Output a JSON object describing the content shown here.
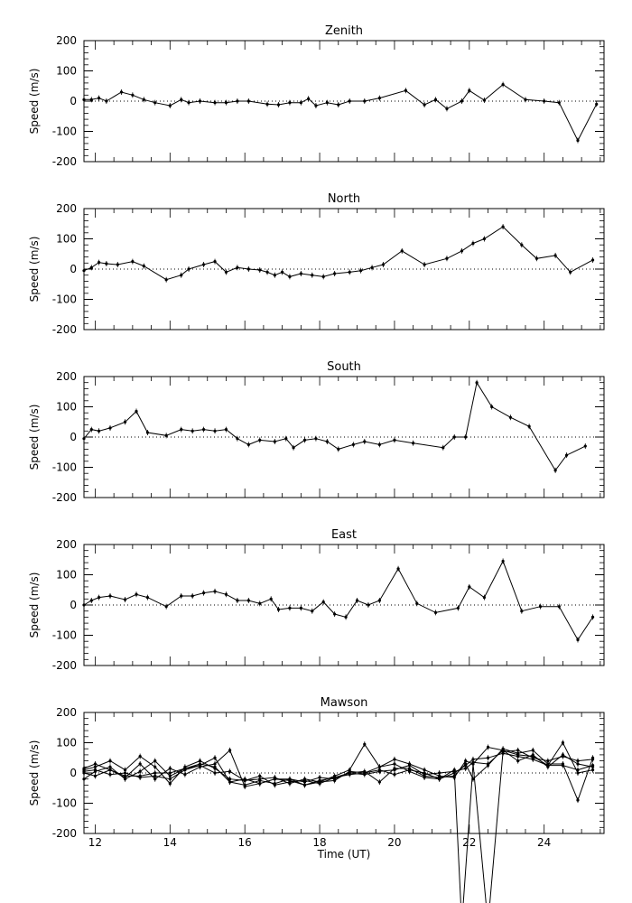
{
  "chart_data": [
    {
      "type": "line",
      "title": "Zenith",
      "ylabel": "Speed (m/s)",
      "xlabel": "",
      "xlim": [
        11.7,
        25.6
      ],
      "ylim": [
        -200,
        200
      ],
      "yticks": [
        -200,
        -100,
        0,
        100,
        200
      ],
      "xticks": [
        12,
        14,
        16,
        18,
        20,
        22,
        24
      ],
      "zero_line": "dotted",
      "series": [
        {
          "x": [
            11.7,
            11.9,
            12.1,
            12.3,
            12.7,
            13.0,
            13.3,
            13.6,
            14.0,
            14.3,
            14.5,
            14.8,
            15.2,
            15.5,
            15.8,
            16.1,
            16.6,
            16.9,
            17.2,
            17.5,
            17.7,
            17.9,
            18.2,
            18.5,
            18.8,
            19.2,
            19.6,
            20.3,
            20.8,
            21.1,
            21.4,
            21.8,
            22.0,
            22.4,
            22.9,
            23.5,
            24.0,
            24.4,
            24.9,
            25.4
          ],
          "y": [
            5,
            5,
            10,
            0,
            30,
            20,
            5,
            -5,
            -15,
            5,
            -5,
            0,
            -5,
            -5,
            0,
            0,
            -10,
            -12,
            -5,
            -5,
            8,
            -15,
            -5,
            -12,
            0,
            0,
            10,
            35,
            -12,
            5,
            -25,
            0,
            35,
            3,
            55,
            5,
            0,
            -5,
            -130,
            -10
          ]
        }
      ]
    },
    {
      "type": "line",
      "title": "North",
      "ylabel": "Speed (m/s)",
      "xlabel": "",
      "xlim": [
        11.7,
        25.6
      ],
      "ylim": [
        -200,
        200
      ],
      "yticks": [
        -200,
        -100,
        0,
        100,
        200
      ],
      "xticks": [
        12,
        14,
        16,
        18,
        20,
        22,
        24
      ],
      "zero_line": "dotted",
      "series": [
        {
          "x": [
            11.7,
            11.9,
            12.1,
            12.3,
            12.6,
            13.0,
            13.3,
            13.9,
            14.3,
            14.5,
            14.9,
            15.2,
            15.5,
            15.8,
            16.1,
            16.4,
            16.6,
            16.8,
            17.0,
            17.2,
            17.5,
            17.8,
            18.1,
            18.4,
            18.8,
            19.1,
            19.4,
            19.7,
            20.2,
            20.8,
            21.4,
            21.8,
            22.1,
            22.4,
            22.9,
            23.4,
            23.8,
            24.3,
            24.7,
            25.3
          ],
          "y": [
            -5,
            5,
            22,
            18,
            15,
            25,
            10,
            -35,
            -20,
            0,
            15,
            25,
            -10,
            5,
            0,
            -3,
            -10,
            -20,
            -10,
            -25,
            -15,
            -20,
            -25,
            -15,
            -10,
            -5,
            5,
            15,
            60,
            15,
            35,
            60,
            85,
            100,
            140,
            80,
            35,
            45,
            -10,
            30
          ]
        }
      ]
    },
    {
      "type": "line",
      "title": "South",
      "ylabel": "Speed (m/s)",
      "xlabel": "",
      "xlim": [
        11.7,
        25.6
      ],
      "ylim": [
        -200,
        200
      ],
      "yticks": [
        -200,
        -100,
        0,
        100,
        200
      ],
      "xticks": [
        12,
        14,
        16,
        18,
        20,
        22,
        24
      ],
      "zero_line": "dotted",
      "series": [
        {
          "x": [
            11.7,
            11.9,
            12.1,
            12.4,
            12.8,
            13.1,
            13.4,
            13.9,
            14.3,
            14.6,
            14.9,
            15.2,
            15.5,
            15.8,
            16.1,
            16.4,
            16.8,
            17.1,
            17.3,
            17.6,
            17.9,
            18.2,
            18.5,
            18.9,
            19.2,
            19.6,
            20.0,
            20.5,
            21.3,
            21.6,
            21.9,
            22.2,
            22.6,
            23.1,
            23.6,
            24.3,
            24.6,
            25.1
          ],
          "y": [
            -5,
            25,
            20,
            30,
            50,
            85,
            15,
            5,
            25,
            20,
            25,
            20,
            25,
            -5,
            -25,
            -10,
            -15,
            -5,
            -35,
            -10,
            -5,
            -15,
            -40,
            -25,
            -15,
            -25,
            -10,
            -20,
            -35,
            0,
            0,
            180,
            100,
            65,
            35,
            -110,
            -60,
            -30
          ]
        }
      ]
    },
    {
      "type": "line",
      "title": "East",
      "ylabel": "Speed (m/s)",
      "xlabel": "",
      "xlim": [
        11.7,
        25.6
      ],
      "ylim": [
        -200,
        200
      ],
      "yticks": [
        -200,
        -100,
        0,
        100,
        200
      ],
      "xticks": [
        12,
        14,
        16,
        18,
        20,
        22,
        24
      ],
      "zero_line": "dotted",
      "series": [
        {
          "x": [
            11.7,
            11.9,
            12.1,
            12.4,
            12.8,
            13.1,
            13.4,
            13.9,
            14.3,
            14.6,
            14.9,
            15.2,
            15.5,
            15.8,
            16.1,
            16.4,
            16.7,
            16.9,
            17.2,
            17.5,
            17.8,
            18.1,
            18.4,
            18.7,
            19.0,
            19.3,
            19.6,
            20.1,
            20.6,
            21.1,
            21.7,
            22.0,
            22.4,
            22.9,
            23.4,
            23.9,
            24.4,
            24.9,
            25.3
          ],
          "y": [
            0,
            15,
            25,
            30,
            18,
            35,
            25,
            -5,
            30,
            30,
            40,
            45,
            35,
            15,
            15,
            5,
            20,
            -15,
            -10,
            -10,
            -20,
            10,
            -30,
            -40,
            15,
            0,
            15,
            120,
            5,
            -25,
            -10,
            60,
            25,
            145,
            -20,
            -5,
            -5,
            -115,
            -40
          ]
        }
      ]
    },
    {
      "type": "line",
      "title": "Mawson",
      "ylabel": "Speed (m/s)",
      "xlabel": "Time (UT)",
      "xlim": [
        11.7,
        25.6
      ],
      "ylim": [
        -200,
        200
      ],
      "yticks": [
        -200,
        -100,
        0,
        100,
        200
      ],
      "xticks": [
        12,
        14,
        16,
        18,
        20,
        22,
        24
      ],
      "zero_line": "dotted",
      "series": [
        {
          "x": [
            11.7,
            12.0,
            12.4,
            12.8,
            13.2,
            13.6,
            14.0,
            14.4,
            14.8,
            15.2,
            15.6,
            16.0,
            16.4,
            16.8,
            17.2,
            17.6,
            18.0,
            18.4,
            18.8,
            19.2,
            19.6,
            20.0,
            20.4,
            20.8,
            21.2,
            21.6,
            21.9,
            22.1,
            22.5,
            22.9,
            23.3,
            23.7,
            24.1,
            24.5,
            24.9,
            25.3
          ],
          "y": [
            10,
            20,
            40,
            10,
            55,
            20,
            -35,
            20,
            40,
            15,
            -20,
            -25,
            -20,
            -15,
            -35,
            -20,
            -30,
            -10,
            10,
            95,
            20,
            45,
            30,
            10,
            -10,
            -15,
            40,
            30,
            85,
            75,
            60,
            55,
            25,
            100,
            0,
            10
          ]
        },
        {
          "x": [
            11.7,
            12.0,
            12.4,
            12.8,
            13.2,
            13.6,
            14.0,
            14.4,
            14.8,
            15.2,
            15.6,
            16.0,
            16.4,
            16.8,
            17.2,
            17.6,
            18.0,
            18.4,
            18.8,
            19.2,
            19.6,
            20.0,
            20.4,
            20.8,
            21.2,
            21.6,
            21.9,
            22.1,
            22.5,
            22.9,
            23.3,
            23.7,
            24.1,
            24.5,
            24.9,
            25.3
          ],
          "y": [
            -20,
            5,
            20,
            -20,
            5,
            40,
            -10,
            15,
            25,
            50,
            -30,
            -20,
            -35,
            -20,
            -20,
            -40,
            -25,
            -15,
            0,
            5,
            -30,
            15,
            15,
            -10,
            -15,
            -10,
            30,
            -20,
            25,
            80,
            65,
            75,
            30,
            30,
            -90,
            50
          ]
        },
        {
          "x": [
            11.7,
            12.0,
            12.4,
            12.8,
            13.2,
            13.6,
            14.0,
            14.4,
            14.8,
            15.2,
            15.6,
            16.0,
            16.4,
            16.8,
            17.2,
            17.6,
            18.0,
            18.4,
            18.8,
            19.2,
            19.6,
            20.0,
            20.4,
            20.8,
            21.2,
            21.6,
            21.9,
            22.1,
            22.5,
            22.9,
            23.3,
            23.7,
            24.1,
            24.5,
            24.9,
            25.3
          ],
          "y": [
            15,
            30,
            10,
            -10,
            -10,
            0,
            0,
            15,
            30,
            20,
            -30,
            -40,
            -25,
            -35,
            -20,
            -30,
            -15,
            -20,
            0,
            -5,
            5,
            10,
            25,
            -5,
            0,
            5,
            15,
            35,
            30,
            75,
            40,
            60,
            20,
            60,
            30,
            20
          ]
        },
        {
          "x": [
            11.7,
            12.0,
            12.4,
            12.8,
            13.2,
            13.6,
            14.0,
            14.4,
            14.8,
            15.2,
            15.6,
            16.0,
            16.4,
            16.8,
            17.2,
            17.6,
            18.0,
            18.4,
            18.8,
            19.2,
            19.6,
            20.0,
            20.4,
            20.8,
            21.2,
            21.6,
            21.9,
            22.1,
            22.5,
            22.9,
            23.3,
            23.7,
            24.1,
            24.5,
            24.9,
            25.3
          ],
          "y": [
            5,
            10,
            -5,
            0,
            -15,
            -10,
            -20,
            10,
            25,
            0,
            5,
            -25,
            -10,
            -40,
            -30,
            -25,
            -35,
            -15,
            -5,
            0,
            10,
            -5,
            10,
            0,
            -20,
            0,
            25,
            45,
            50,
            65,
            55,
            45,
            25,
            25,
            10,
            25
          ]
        },
        {
          "x": [
            11.7,
            12.0,
            12.4,
            12.8,
            13.2,
            13.6,
            14.0,
            14.4,
            14.8,
            15.2,
            15.6,
            16.0,
            16.4,
            16.8,
            17.2,
            17.6,
            18.0,
            18.4,
            18.8,
            19.2,
            19.6,
            20.0,
            20.4,
            20.8,
            21.2,
            21.6,
            21.8,
            22.1,
            22.5,
            22.9,
            23.3,
            23.7,
            24.1,
            24.5,
            24.9,
            25.3
          ],
          "y": [
            0,
            -10,
            10,
            -15,
            30,
            -20,
            15,
            -5,
            20,
            30,
            75,
            -45,
            -35,
            -20,
            -25,
            -40,
            -30,
            -25,
            5,
            0,
            20,
            30,
            5,
            -15,
            -20,
            10,
            -500,
            30,
            -500,
            70,
            75,
            50,
            40,
            55,
            40,
            45
          ]
        }
      ]
    }
  ]
}
